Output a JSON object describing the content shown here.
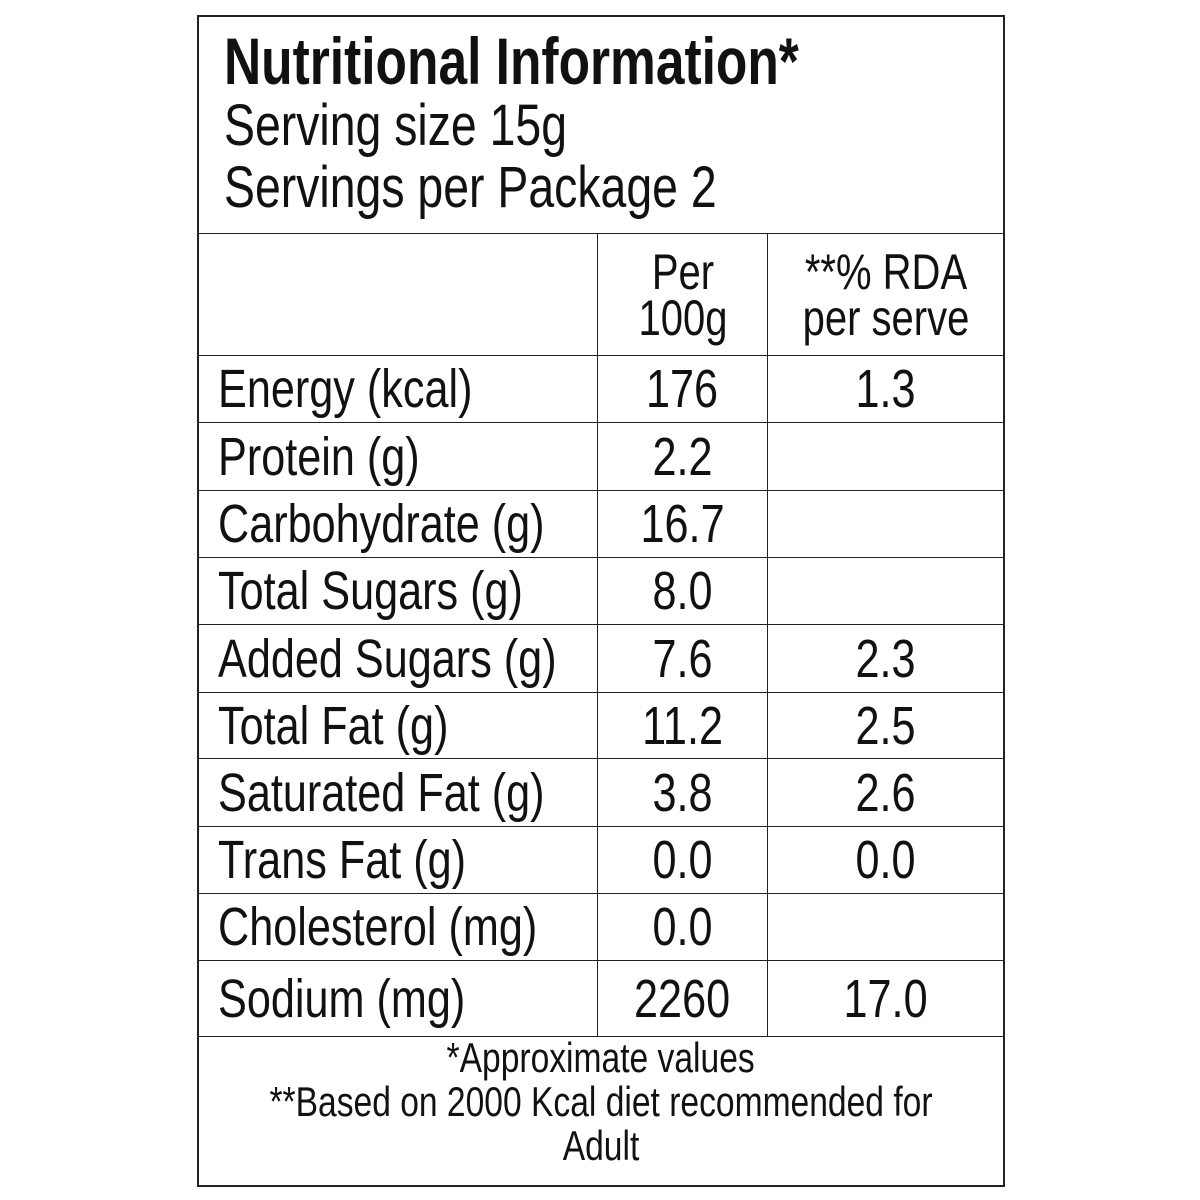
{
  "header": {
    "title": "Nutritional Information*",
    "serving_size": "Serving size 15g",
    "servings_per_package": "Servings per Package 2"
  },
  "table": {
    "columns": [
      "Per 100g",
      "**% RDA per serve"
    ],
    "rows": [
      {
        "nutrient": "Energy (kcal)",
        "per_100g": "176",
        "rda": "1.3"
      },
      {
        "nutrient": "Protein (g)",
        "per_100g": "2.2"
      },
      {
        "nutrient": "Carbohydrate (g)",
        "per_100g": "16.7"
      },
      {
        "nutrient": "Total Sugars (g)",
        "per_100g": "8.0"
      },
      {
        "nutrient": "Added Sugars (g)",
        "per_100g": "7.6",
        "rda": "2.3"
      },
      {
        "nutrient": "Total Fat (g)",
        "per_100g": "11.2",
        "rda": "2.5"
      },
      {
        "nutrient": "Saturated Fat (g)",
        "per_100g": "3.8",
        "rda": "2.6"
      },
      {
        "nutrient": "Trans Fat (g)",
        "per_100g": "0.0",
        "rda": "0.0"
      },
      {
        "nutrient": "Cholesterol (mg)",
        "per_100g": "0.0"
      },
      {
        "nutrient": "Sodium (mg)",
        "per_100g": "2260",
        "rda": "17.0"
      }
    ]
  },
  "footer": {
    "note1": "*Approximate values",
    "note2": "**Based on 2000 Kcal diet recommended for Adult"
  }
}
